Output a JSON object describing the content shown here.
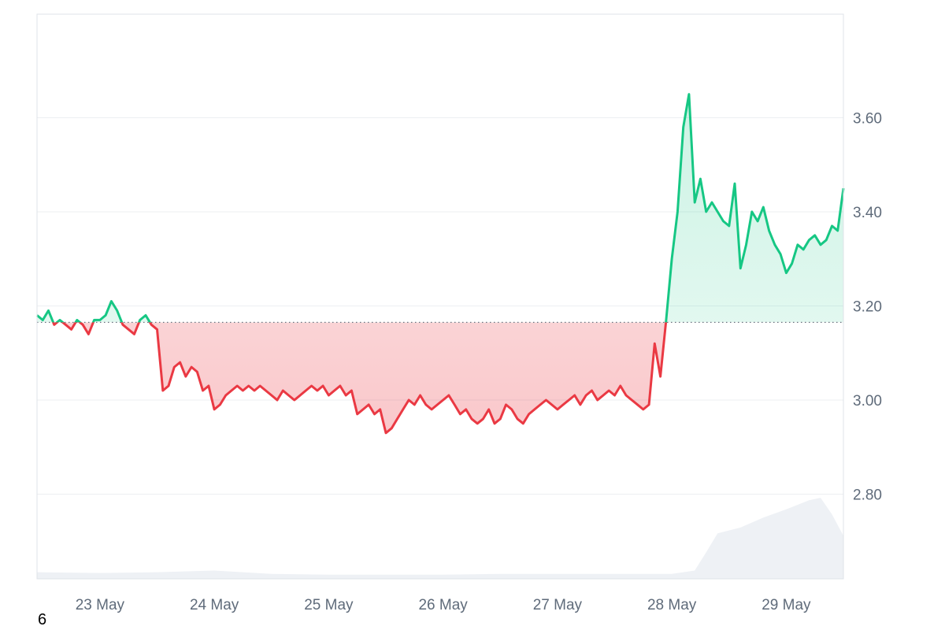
{
  "colors": {
    "up": "#16c784",
    "down": "#ea3943",
    "grid": "#eceff2",
    "border": "#dfe3e8",
    "volume": "#eef1f5",
    "baseline": "#6b7280",
    "tick_text": "#5f6b7a"
  },
  "footer_note": "6",
  "chart_data": {
    "type": "line",
    "title": "",
    "xlabel": "",
    "ylabel": "",
    "ylim": [
      2.62,
      3.82
    ],
    "xlim_days": [
      -0.55,
      6.5
    ],
    "baseline": 3.165,
    "y_ticks": [
      2.8,
      3.0,
      3.2,
      3.4,
      3.6
    ],
    "y_tick_labels": [
      "2.80",
      "3.00",
      "3.20",
      "3.40",
      "3.60"
    ],
    "x_tick_labels": [
      "23 May",
      "24 May",
      "25 May",
      "26 May",
      "27 May",
      "28 May",
      "29 May"
    ],
    "grid": true,
    "price_series": {
      "x_days": [
        -0.55,
        -0.5,
        -0.45,
        -0.4,
        -0.35,
        -0.3,
        -0.25,
        -0.2,
        -0.15,
        -0.1,
        -0.05,
        0.0,
        0.05,
        0.1,
        0.15,
        0.2,
        0.25,
        0.3,
        0.35,
        0.4,
        0.45,
        0.5,
        0.55,
        0.6,
        0.65,
        0.7,
        0.75,
        0.8,
        0.85,
        0.9,
        0.95,
        1.0,
        1.05,
        1.1,
        1.15,
        1.2,
        1.25,
        1.3,
        1.35,
        1.4,
        1.45,
        1.5,
        1.55,
        1.6,
        1.65,
        1.7,
        1.75,
        1.8,
        1.85,
        1.9,
        1.95,
        2.0,
        2.05,
        2.1,
        2.15,
        2.2,
        2.25,
        2.3,
        2.35,
        2.4,
        2.45,
        2.5,
        2.55,
        2.6,
        2.65,
        2.7,
        2.75,
        2.8,
        2.85,
        2.9,
        2.95,
        3.0,
        3.05,
        3.1,
        3.15,
        3.2,
        3.25,
        3.3,
        3.35,
        3.4,
        3.45,
        3.5,
        3.55,
        3.6,
        3.65,
        3.7,
        3.75,
        3.8,
        3.85,
        3.9,
        3.95,
        4.0,
        4.05,
        4.1,
        4.15,
        4.2,
        4.25,
        4.3,
        4.35,
        4.4,
        4.45,
        4.5,
        4.55,
        4.6,
        4.65,
        4.7,
        4.75,
        4.8,
        4.85,
        4.9,
        4.95,
        5.0,
        5.05,
        5.1,
        5.15,
        5.2,
        5.25,
        5.3,
        5.35,
        5.4,
        5.45,
        5.5,
        5.55,
        5.6,
        5.65,
        5.7,
        5.75,
        5.8,
        5.85,
        5.9,
        5.95,
        6.0,
        6.05,
        6.1,
        6.15,
        6.2,
        6.25,
        6.3,
        6.35,
        6.4,
        6.45,
        6.5
      ],
      "values": [
        3.18,
        3.17,
        3.19,
        3.16,
        3.17,
        3.16,
        3.15,
        3.17,
        3.16,
        3.14,
        3.17,
        3.17,
        3.18,
        3.21,
        3.19,
        3.16,
        3.15,
        3.14,
        3.17,
        3.18,
        3.16,
        3.15,
        3.02,
        3.03,
        3.07,
        3.08,
        3.05,
        3.07,
        3.06,
        3.02,
        3.03,
        2.98,
        2.99,
        3.01,
        3.02,
        3.03,
        3.02,
        3.03,
        3.02,
        3.03,
        3.02,
        3.01,
        3.0,
        3.02,
        3.01,
        3.0,
        3.01,
        3.02,
        3.03,
        3.02,
        3.03,
        3.01,
        3.02,
        3.03,
        3.01,
        3.02,
        2.97,
        2.98,
        2.99,
        2.97,
        2.98,
        2.93,
        2.94,
        2.96,
        2.98,
        3.0,
        2.99,
        3.01,
        2.99,
        2.98,
        2.99,
        3.0,
        3.01,
        2.99,
        2.97,
        2.98,
        2.96,
        2.95,
        2.96,
        2.98,
        2.95,
        2.96,
        2.99,
        2.98,
        2.96,
        2.95,
        2.97,
        2.98,
        2.99,
        3.0,
        2.99,
        2.98,
        2.99,
        3.0,
        3.01,
        2.99,
        3.01,
        3.02,
        3.0,
        3.01,
        3.02,
        3.01,
        3.03,
        3.01,
        3.0,
        2.99,
        2.98,
        2.99,
        3.12,
        3.05,
        3.17,
        3.3,
        3.4,
        3.58,
        3.65,
        3.42,
        3.47,
        3.4,
        3.42,
        3.4,
        3.38,
        3.37,
        3.46,
        3.28,
        3.33,
        3.4,
        3.38,
        3.41,
        3.36,
        3.33,
        3.31,
        3.27,
        3.29,
        3.33,
        3.32,
        3.34,
        3.35,
        3.33,
        3.34,
        3.37,
        3.36,
        3.45
      ]
    },
    "volume_series": {
      "x_days": [
        -0.55,
        0.0,
        0.5,
        1.0,
        1.5,
        2.0,
        2.5,
        3.0,
        3.5,
        4.0,
        4.5,
        5.0,
        5.1,
        5.2,
        5.3,
        5.4,
        5.6,
        5.8,
        6.0,
        6.2,
        6.3,
        6.4,
        6.5
      ],
      "values": [
        0.08,
        0.07,
        0.08,
        0.1,
        0.06,
        0.05,
        0.05,
        0.05,
        0.06,
        0.06,
        0.06,
        0.06,
        0.08,
        0.1,
        0.32,
        0.55,
        0.62,
        0.74,
        0.84,
        0.95,
        0.98,
        0.78,
        0.52
      ]
    }
  }
}
